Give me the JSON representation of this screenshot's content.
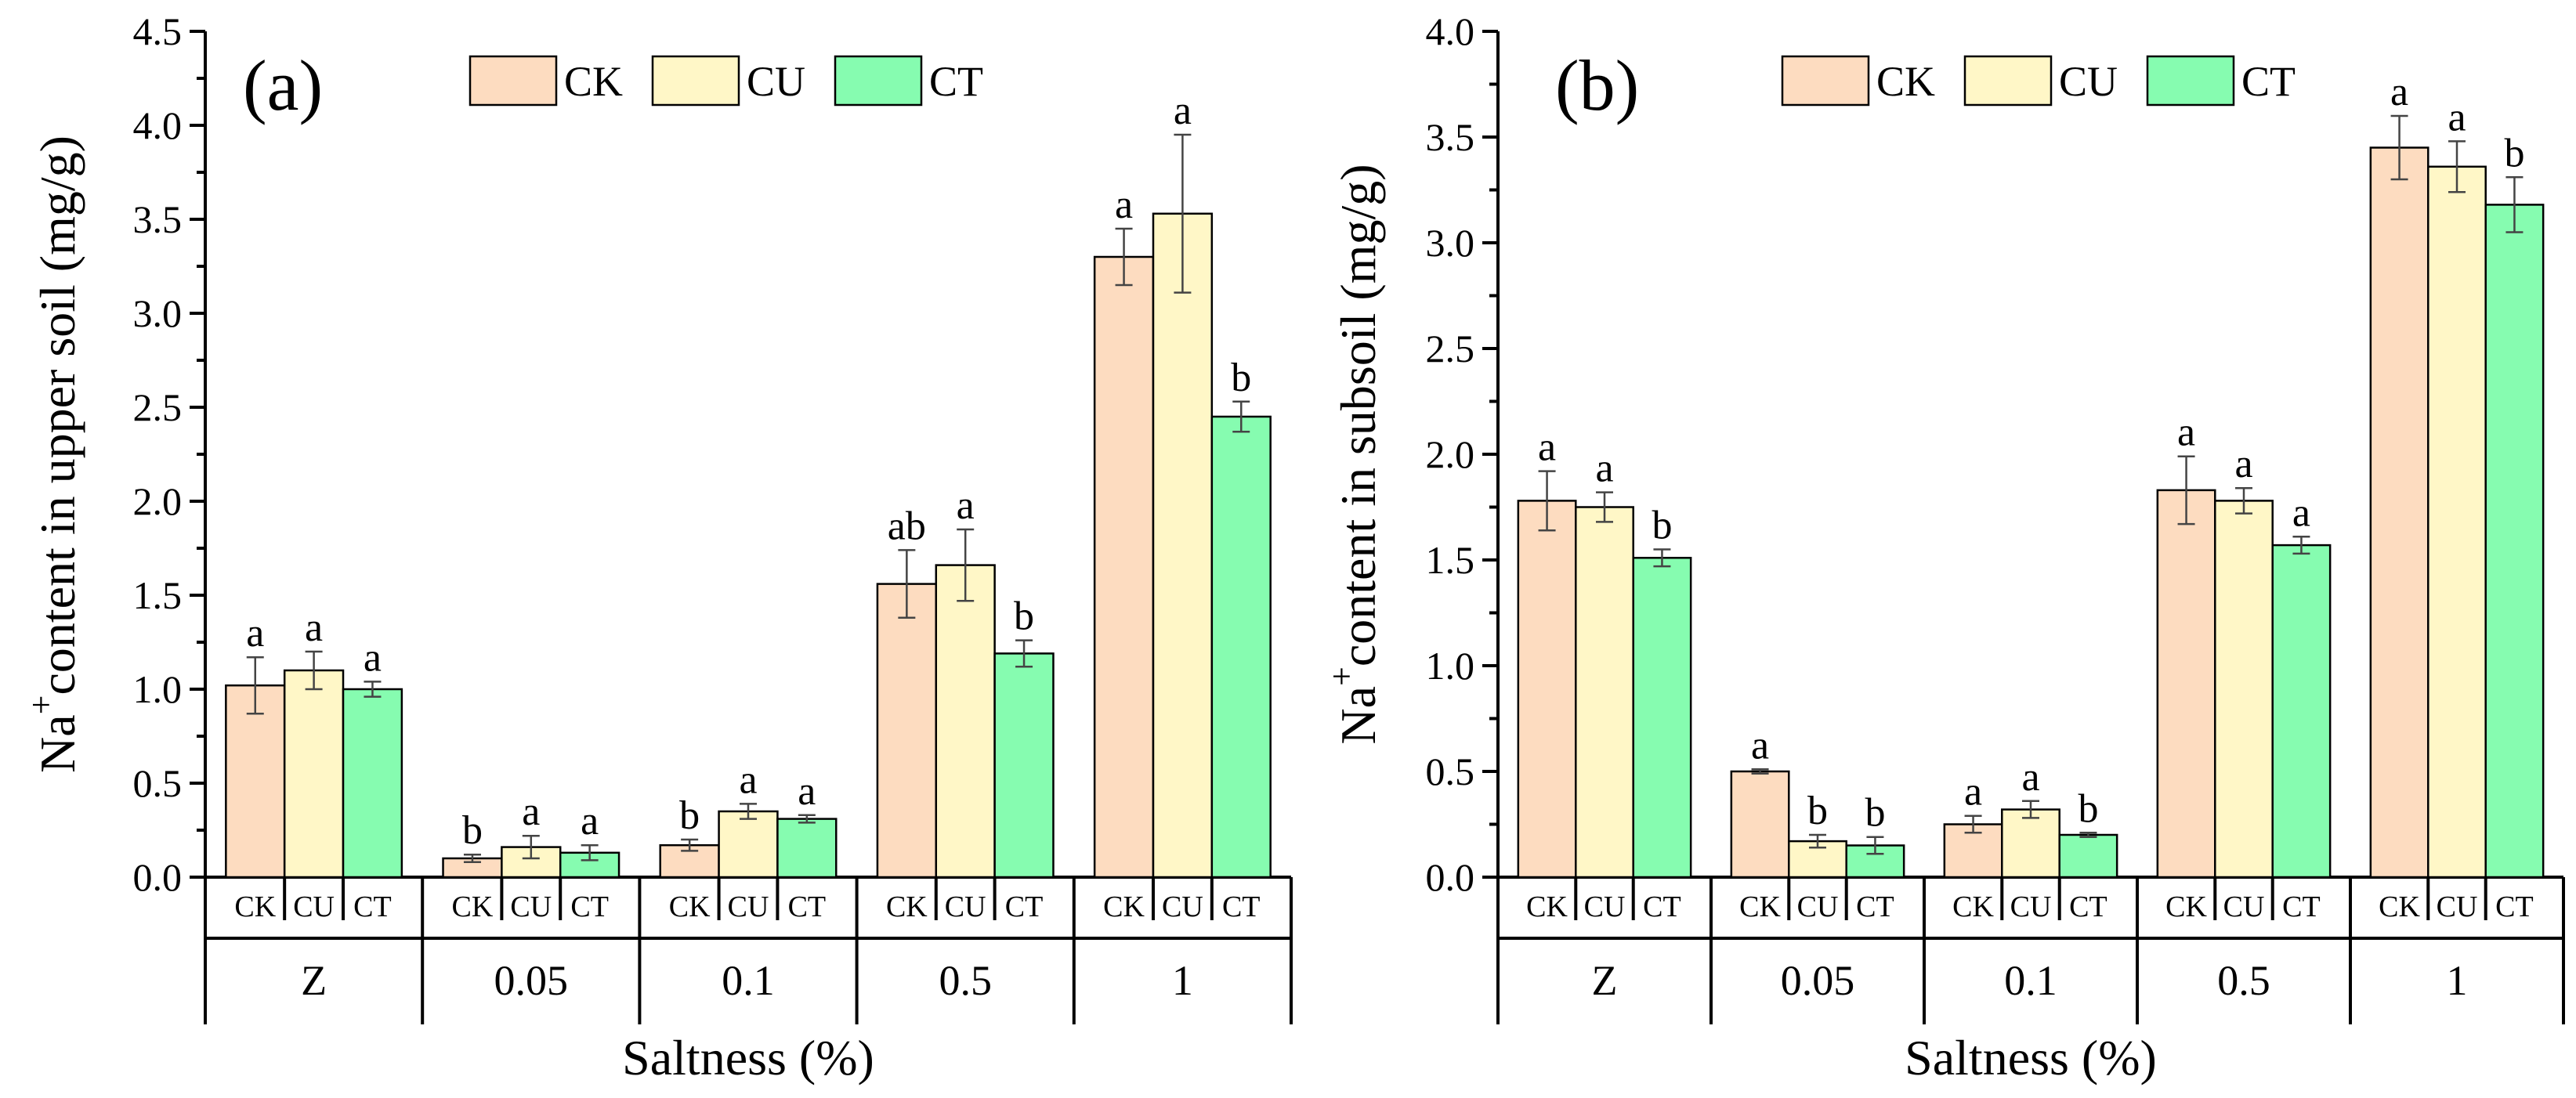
{
  "figure": {
    "colors": {
      "CK": "#fddcc0",
      "CU": "#fff7c7",
      "CT": "#86fcb0"
    }
  },
  "chart_data": [
    {
      "type": "bar",
      "panel_label": "(a)",
      "ylabel_prefix": "Na",
      "ylabel_superscript": "+",
      "ylabel": "content in upper soil (mg/g)",
      "xlabel": "Saltness (%)",
      "ylim": [
        0,
        4.5
      ],
      "yticks": [
        "0.0",
        "0.5",
        "1.0",
        "1.5",
        "2.0",
        "2.5",
        "3.0",
        "3.5",
        "4.0",
        "4.5"
      ],
      "legend_position": "top-center",
      "categories": [
        "Z",
        "0.05",
        "0.1",
        "0.5",
        "1"
      ],
      "sub_labels": [
        "CK",
        "CU",
        "CT"
      ],
      "series": [
        {
          "name": "CK",
          "values": [
            1.02,
            0.1,
            0.17,
            1.56,
            3.3
          ],
          "errors": [
            0.15,
            0.02,
            0.03,
            0.18,
            0.15
          ],
          "letters": [
            "a",
            "b",
            "b",
            "ab",
            "a"
          ]
        },
        {
          "name": "CU",
          "values": [
            1.1,
            0.16,
            0.35,
            1.66,
            3.53
          ],
          "errors": [
            0.1,
            0.06,
            0.04,
            0.19,
            0.42
          ],
          "letters": [
            "a",
            "a",
            "a",
            "a",
            "a"
          ]
        },
        {
          "name": "CT",
          "values": [
            1.0,
            0.13,
            0.31,
            1.19,
            2.45
          ],
          "errors": [
            0.04,
            0.04,
            0.02,
            0.07,
            0.08
          ],
          "letters": [
            "a",
            "a",
            "a",
            "b",
            "b"
          ]
        }
      ]
    },
    {
      "type": "bar",
      "panel_label": "(b)",
      "ylabel_prefix": "Na",
      "ylabel_superscript": "+",
      "ylabel": "content in subsoil (mg/g)",
      "xlabel": "Saltness (%)",
      "ylim": [
        0,
        4.0
      ],
      "yticks": [
        "0.0",
        "0.5",
        "1.0",
        "1.5",
        "2.0",
        "2.5",
        "3.0",
        "3.5",
        "4.0"
      ],
      "legend_position": "top-center",
      "categories": [
        "Z",
        "0.05",
        "0.1",
        "0.5",
        "1"
      ],
      "sub_labels": [
        "CK",
        "CU",
        "CT"
      ],
      "series": [
        {
          "name": "CK",
          "values": [
            1.78,
            0.5,
            0.25,
            1.83,
            3.45
          ],
          "errors": [
            0.14,
            0.01,
            0.04,
            0.16,
            0.15
          ],
          "letters": [
            "a",
            "a",
            "a",
            "a",
            "a"
          ]
        },
        {
          "name": "CU",
          "values": [
            1.75,
            0.17,
            0.32,
            1.78,
            3.36
          ],
          "errors": [
            0.07,
            0.03,
            0.04,
            0.06,
            0.12
          ],
          "letters": [
            "a",
            "b",
            "a",
            "a",
            "a"
          ]
        },
        {
          "name": "CT",
          "values": [
            1.51,
            0.15,
            0.2,
            1.57,
            3.18
          ],
          "errors": [
            0.04,
            0.04,
            0.01,
            0.04,
            0.13
          ],
          "letters": [
            "b",
            "b",
            "b",
            "a",
            "b"
          ]
        }
      ]
    }
  ]
}
